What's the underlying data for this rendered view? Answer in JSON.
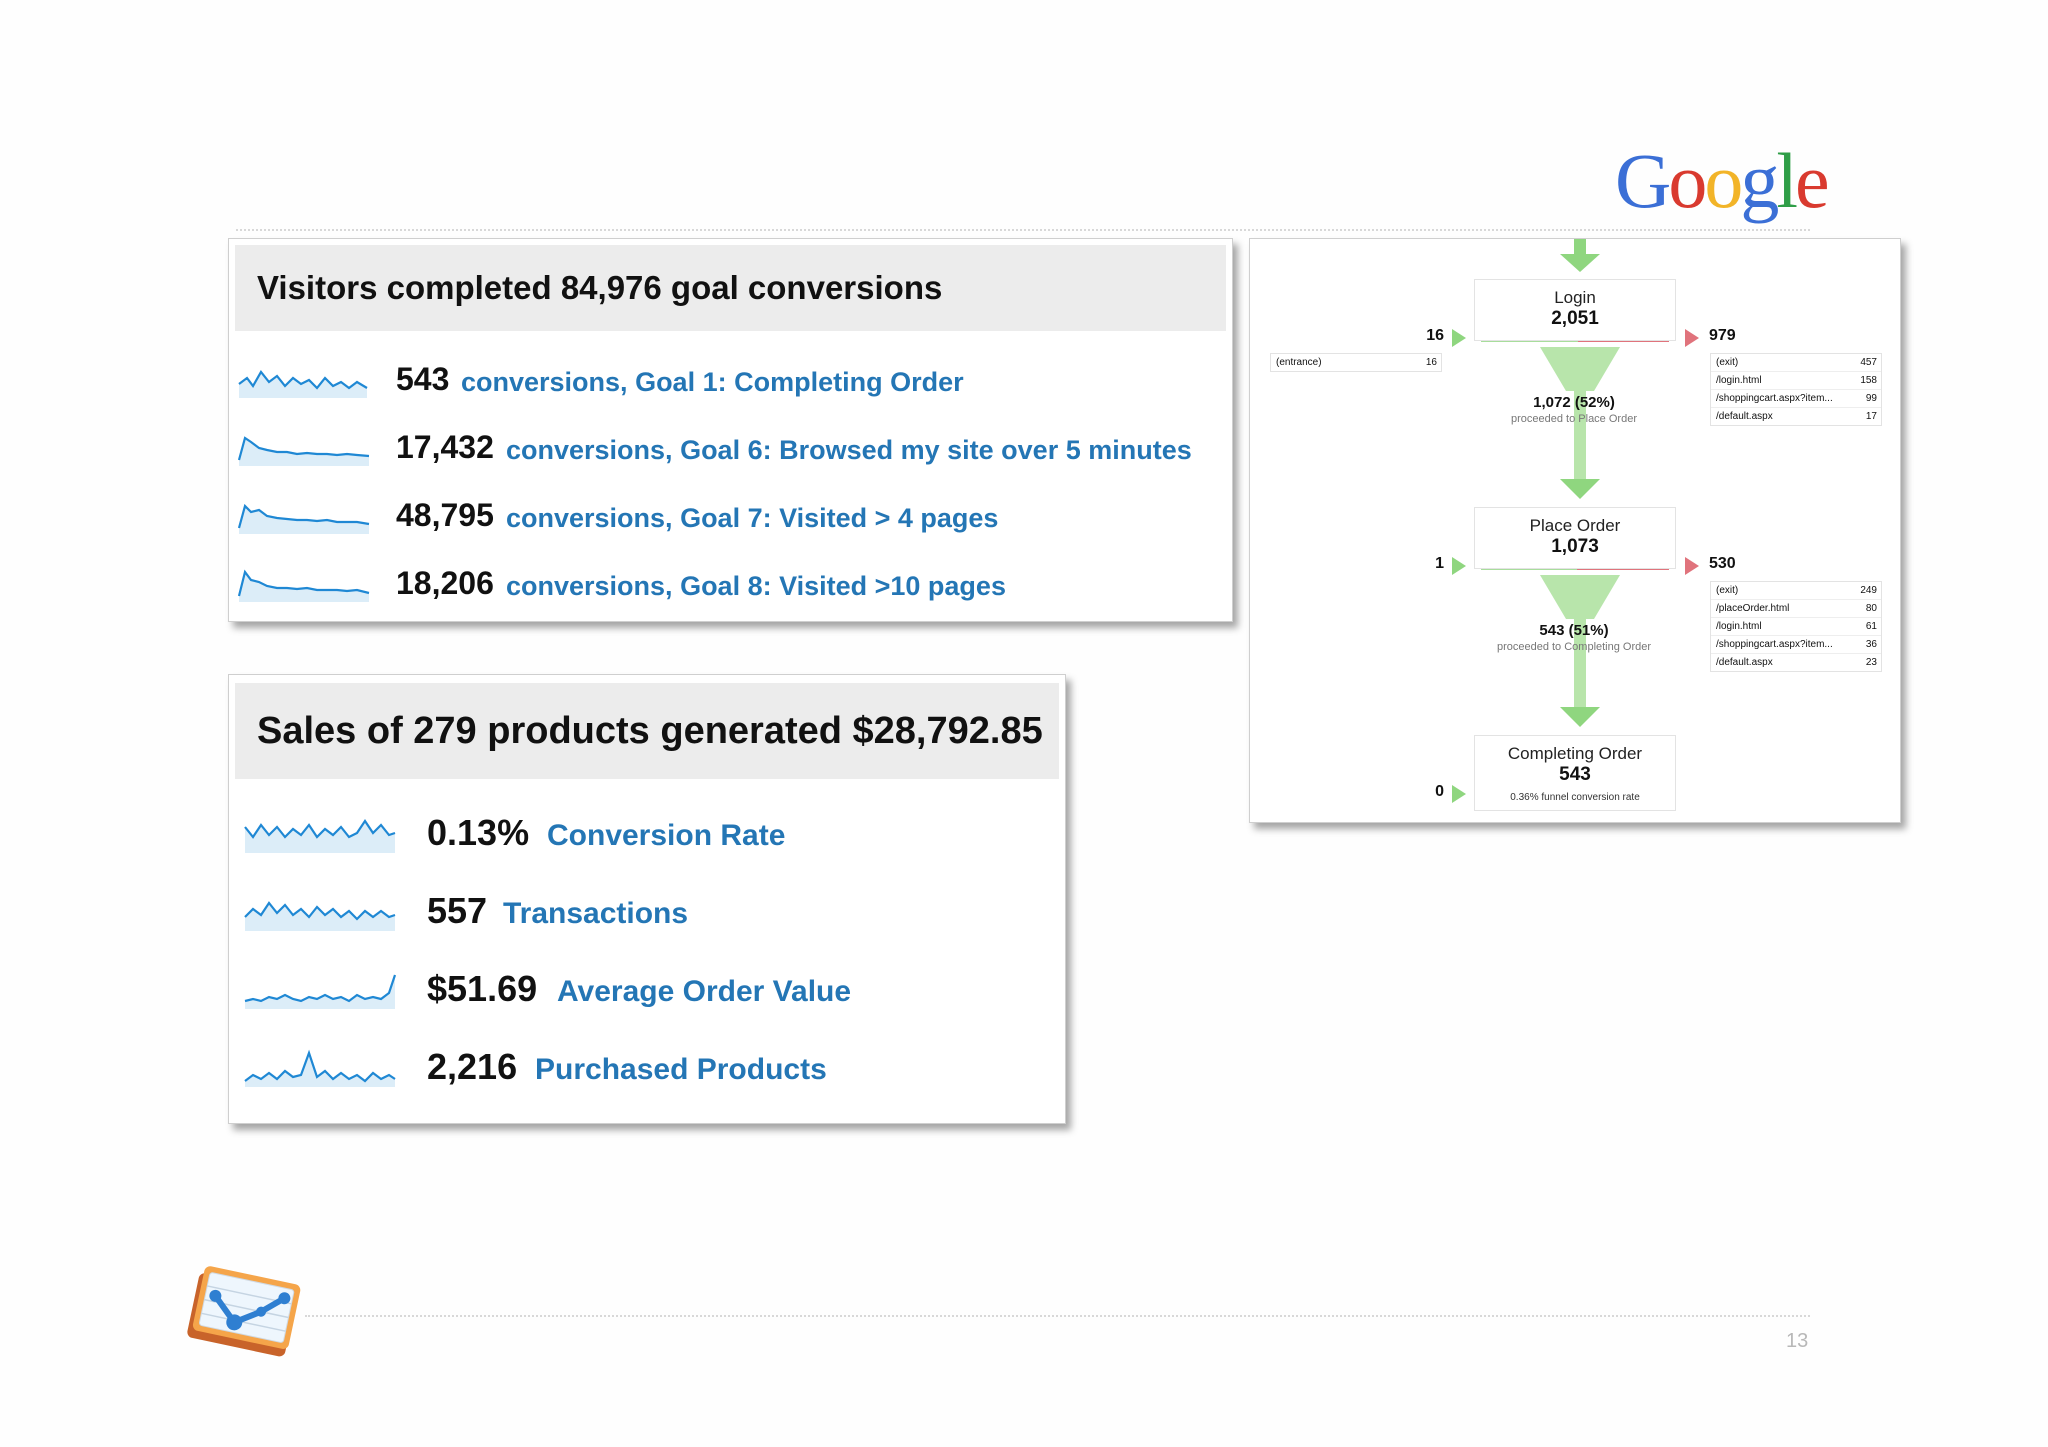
{
  "brand": {
    "logo_text": "Google"
  },
  "goals_panel": {
    "title": "Visitors completed 84,976 goal conversions",
    "rows": [
      {
        "value": "543",
        "label": "conversions, Goal 1: Completing Order"
      },
      {
        "value": "17,432",
        "label": "conversions, Goal 6: Browsed my site over 5 minutes"
      },
      {
        "value": "48,795",
        "label": "conversions, Goal 7: Visited > 4 pages"
      },
      {
        "value": "18,206",
        "label": "conversions, Goal 8: Visited >10 pages"
      }
    ]
  },
  "sales_panel": {
    "title": "Sales of 279 products generated $28,792.85",
    "rows": [
      {
        "value": "0.13%",
        "label": "Conversion Rate"
      },
      {
        "value": "557",
        "label": "Transactions"
      },
      {
        "value": "$51.69",
        "label": "Average Order Value"
      },
      {
        "value": "2,216",
        "label": "Purchased Products"
      }
    ]
  },
  "funnel": {
    "steps": [
      {
        "name": "Login",
        "count": "2,051",
        "entries": "16",
        "exits": "979",
        "proceeded": "1,072 (52%)",
        "proceeded_label": "proceeded to Place Order",
        "proceed_share": 0.52,
        "entry_sources": [
          {
            "page": "(entrance)",
            "value": "16"
          }
        ],
        "exit_pages": [
          {
            "page": "(exit)",
            "value": "457"
          },
          {
            "page": "/login.html",
            "value": "158"
          },
          {
            "page": "/shoppingcart.aspx?item...",
            "value": "99"
          },
          {
            "page": "/default.aspx",
            "value": "17"
          }
        ]
      },
      {
        "name": "Place Order",
        "count": "1,073",
        "entries": "1",
        "exits": "530",
        "proceeded": "543 (51%)",
        "proceeded_label": "proceeded to Completing Order",
        "proceed_share": 0.51,
        "exit_pages": [
          {
            "page": "(exit)",
            "value": "249"
          },
          {
            "page": "/placeOrder.html",
            "value": "80"
          },
          {
            "page": "/login.html",
            "value": "61"
          },
          {
            "page": "/shoppingcart.aspx?item...",
            "value": "36"
          },
          {
            "page": "/default.aspx",
            "value": "23"
          }
        ]
      },
      {
        "name": "Completing Order",
        "count": "543",
        "entries": "0",
        "rate_label": "0.36% funnel conversion rate"
      }
    ]
  },
  "colors": {
    "link": "#2476b5",
    "spark": "#1f88d4",
    "green": "#8fd67f",
    "red": "#e0737c"
  },
  "icons": [
    "analytics-logo-icon"
  ],
  "page_number": "13"
}
